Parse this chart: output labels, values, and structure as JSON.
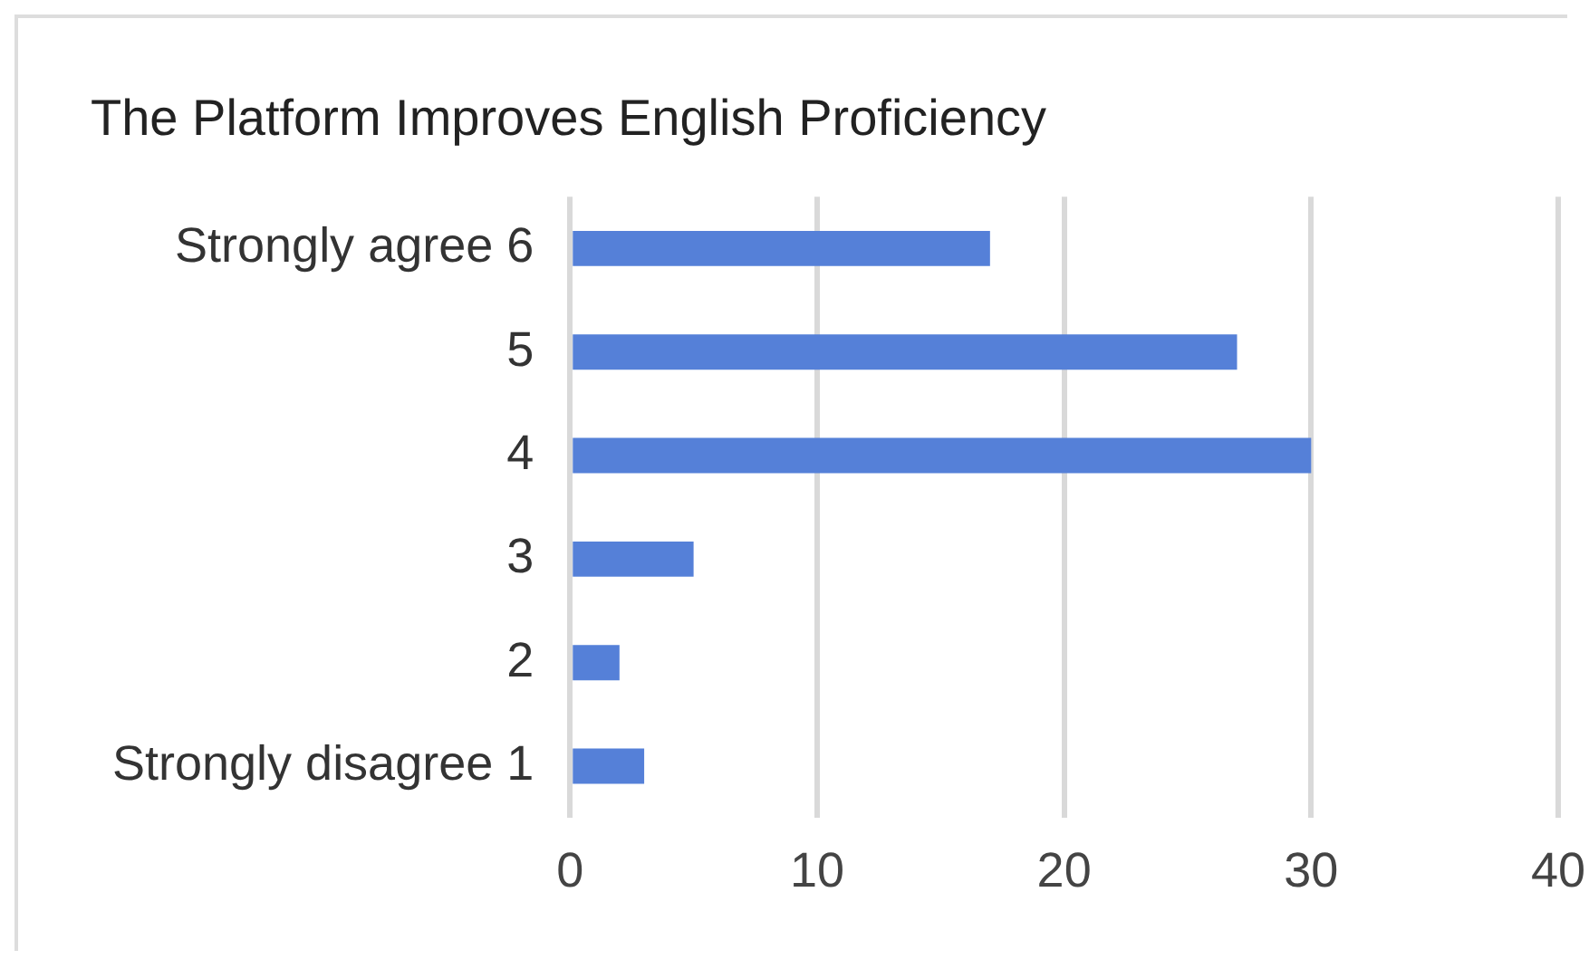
{
  "chart_data": {
    "type": "bar",
    "orientation": "horizontal",
    "title": "The Platform Improves English Proficiency",
    "categories": [
      "Strongly agree 6",
      "5",
      "4",
      "3",
      "2",
      "Strongly disagree 1"
    ],
    "values": [
      17,
      27,
      30,
      5,
      2,
      3
    ],
    "color": "#5580d8",
    "xlim": [
      0,
      40
    ],
    "xticks": [
      0,
      10,
      20,
      30,
      40
    ],
    "grid": "x",
    "legend": false
  }
}
